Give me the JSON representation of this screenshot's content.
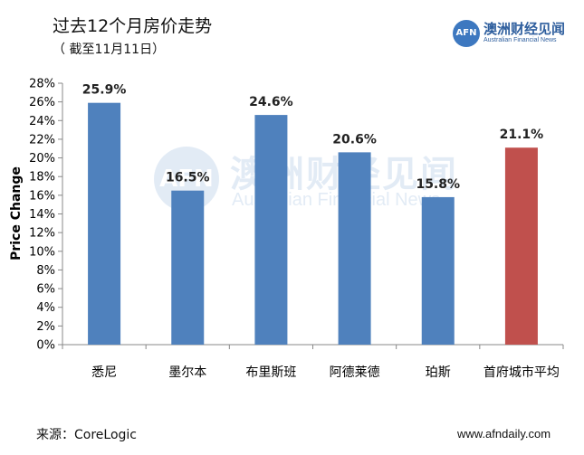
{
  "title": "过去12个月房价走势",
  "subtitle": "（ 截至11月11日）",
  "logo": {
    "mark": "AFN",
    "name_cn": "澳洲财经见闻",
    "name_en": "Australian Financial News"
  },
  "watermark": {
    "mark": "AFN",
    "name_cn": "澳洲财经见闻",
    "name_en": "Australian Financial News"
  },
  "source": "来源：CoreLogic",
  "url": "www.afndaily.com",
  "colors": {
    "blue": "#4f81bd",
    "red": "#c0504d"
  },
  "chart_data": {
    "type": "bar",
    "categories": [
      "悉尼",
      "墨尔本",
      "布里斯班",
      "阿德莱德",
      "珀斯",
      "首府城市平均"
    ],
    "values": [
      25.9,
      16.5,
      24.6,
      20.6,
      15.8,
      21.1
    ],
    "data_labels": [
      "25.9%",
      "16.5%",
      "24.6%",
      "20.6%",
      "15.8%",
      "21.1%"
    ],
    "bar_colors": [
      "#4f81bd",
      "#4f81bd",
      "#4f81bd",
      "#4f81bd",
      "#4f81bd",
      "#c0504d"
    ],
    "ylabel": "Price Change",
    "ylim": [
      0,
      28
    ],
    "yticks": [
      "0%",
      "2%",
      "4%",
      "6%",
      "8%",
      "10%",
      "12%",
      "14%",
      "16%",
      "18%",
      "20%",
      "22%",
      "24%",
      "26%",
      "28%"
    ],
    "grid": false,
    "legend": "none"
  }
}
